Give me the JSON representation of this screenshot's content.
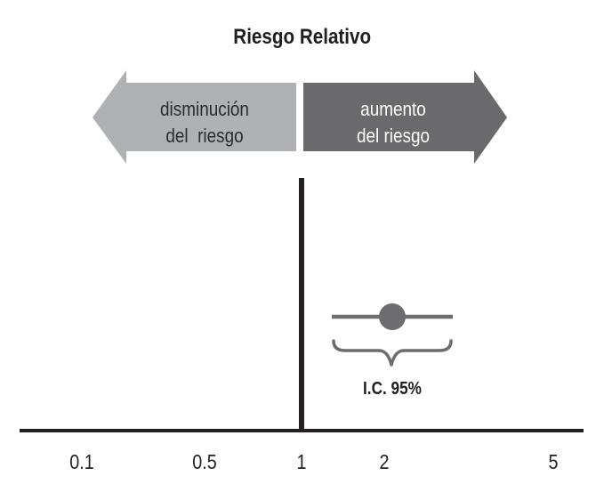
{
  "title": "Riesgo Relativo",
  "arrows": {
    "left": {
      "line1": "disminución",
      "line2": "del  riesgo",
      "color": "#b0b1b4"
    },
    "right": {
      "line1": "aumento",
      "line2": "del riesgo",
      "color": "#6a6a6c"
    }
  },
  "reference_value": "1",
  "ci_label": "I.C. 95%",
  "chart_data": {
    "type": "scatter",
    "x_scale": "log",
    "x_ticks": [
      "0.1",
      "0.5",
      "1",
      "2",
      "5"
    ],
    "estimate": {
      "point": 2.0,
      "ci_low": 1.4,
      "ci_high": 3.0
    },
    "marker_color": "#6d6d6f"
  }
}
